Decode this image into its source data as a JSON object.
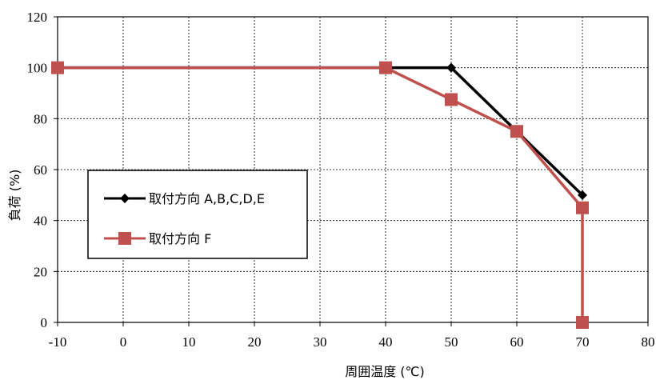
{
  "chart_data": {
    "type": "line",
    "title": "",
    "xlabel": "周囲温度 (℃)",
    "ylabel": "負荷 (%)",
    "xlim": [
      -10,
      80
    ],
    "ylim": [
      0,
      120
    ],
    "xticks": [
      -10,
      0,
      10,
      20,
      30,
      40,
      50,
      60,
      70,
      80
    ],
    "yticks": [
      0,
      20,
      40,
      60,
      80,
      100,
      120
    ],
    "grid": true,
    "legend_position": "lower-left",
    "series": [
      {
        "name": "取付方向 A,B,C,D,E",
        "color": "#000000",
        "marker": "diamond",
        "x": [
          -10,
          40,
          50,
          60,
          70
        ],
        "y": [
          100,
          100,
          100,
          75,
          50
        ]
      },
      {
        "name": "取付方向 F",
        "color": "#C0504D",
        "marker": "square",
        "x": [
          -10,
          40,
          50,
          60,
          70,
          70
        ],
        "y": [
          100,
          100,
          87.5,
          75,
          45,
          0
        ]
      }
    ]
  }
}
